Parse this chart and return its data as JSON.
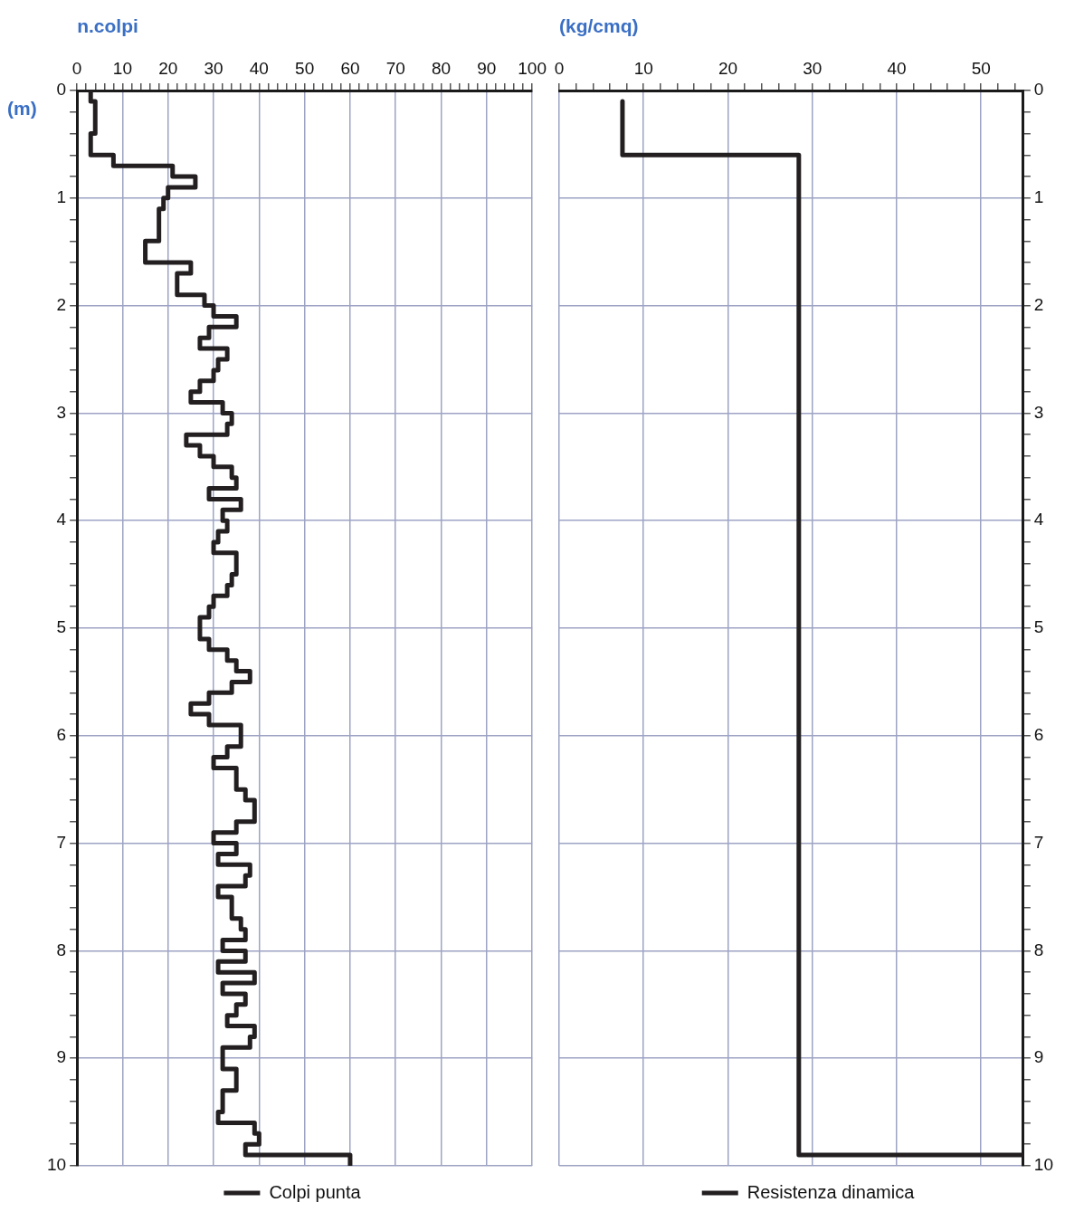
{
  "chart_data": [
    {
      "type": "step",
      "orientation": "horizontal",
      "xlabel": "n.colpi",
      "ylabel": "(m)",
      "x": [
        0,
        0.1,
        0.4,
        0.6,
        0.7,
        0.8,
        0.9,
        1.0,
        1.1,
        1.4,
        1.6,
        1.7,
        1.9,
        2.0,
        2.1,
        2.2,
        2.3,
        2.4,
        2.5,
        2.6,
        2.7,
        2.8,
        2.9,
        3.0,
        3.1,
        3.2,
        3.3,
        3.4,
        3.5,
        3.6,
        3.7,
        3.8,
        3.9,
        4.0,
        4.1,
        4.2,
        4.3,
        4.5,
        4.6,
        4.7,
        4.8,
        4.9,
        5.1,
        5.2,
        5.3,
        5.4,
        5.5,
        5.6,
        5.7,
        5.8,
        5.9,
        6.1,
        6.2,
        6.3,
        6.5,
        6.6,
        6.8,
        6.9,
        7.0,
        7.1,
        7.2,
        7.3,
        7.4,
        7.5,
        7.7,
        7.8,
        7.9,
        8.0,
        8.1,
        8.2,
        8.3,
        8.4,
        8.5,
        8.6,
        8.7,
        8.8,
        8.9,
        9.1,
        9.3,
        9.5,
        9.6,
        9.7,
        9.8,
        9.9,
        10
      ],
      "series": [
        {
          "name": "Colpi punta",
          "color": "#231f20",
          "values": [
            3,
            4,
            3,
            8,
            21,
            26,
            20,
            19,
            18,
            15,
            25,
            22,
            28,
            30,
            35,
            29,
            27,
            33,
            31,
            30,
            27,
            25,
            32,
            34,
            33,
            24,
            27,
            30,
            34,
            35,
            29,
            36,
            32,
            33,
            31,
            30,
            35,
            34,
            33,
            30,
            29,
            27,
            29,
            33,
            35,
            38,
            34,
            29,
            25,
            29,
            36,
            33,
            30,
            35,
            37,
            39,
            35,
            30,
            35,
            31,
            38,
            37,
            31,
            34,
            36,
            37,
            32,
            37,
            31,
            39,
            32,
            37,
            35,
            33,
            39,
            38,
            32,
            35,
            32,
            31,
            39,
            40,
            37,
            60,
            60
          ]
        }
      ],
      "xlim": [
        0,
        100
      ],
      "xticks": [
        0,
        {
          "value": 2,
          "label": null
        },
        {
          "value": 4,
          "label": null
        },
        {
          "value": 6,
          "label": null
        },
        {
          "value": 8,
          "label": null
        },
        10,
        {
          "value": 12,
          "label": null
        },
        {
          "value": 14,
          "label": null
        },
        {
          "value": 16,
          "label": null
        },
        {
          "value": 18,
          "label": null
        },
        20,
        {
          "value": 22,
          "label": null
        },
        {
          "value": 24,
          "label": null
        },
        {
          "value": 26,
          "label": null
        },
        {
          "value": 28,
          "label": null
        },
        30,
        {
          "value": 32,
          "label": null
        },
        {
          "value": 34,
          "label": null
        },
        {
          "value": 36,
          "label": null
        },
        {
          "value": 38,
          "label": null
        },
        40,
        {
          "value": 42,
          "label": null
        },
        {
          "value": 44,
          "label": null
        },
        {
          "value": 46,
          "label": null
        },
        {
          "value": 48,
          "label": null
        },
        50,
        {
          "value": 52,
          "label": null
        },
        {
          "value": 54,
          "label": null
        },
        {
          "value": 56,
          "label": null
        },
        {
          "value": 58,
          "label": null
        },
        60,
        {
          "value": 62,
          "label": null
        },
        {
          "value": 64,
          "label": null
        },
        {
          "value": 66,
          "label": null
        },
        {
          "value": 68,
          "label": null
        },
        70,
        {
          "value": 72,
          "label": null
        },
        {
          "value": 74,
          "label": null
        },
        {
          "value": 76,
          "label": null
        },
        {
          "value": 78,
          "label": null
        },
        80,
        {
          "value": 82,
          "label": null
        },
        {
          "value": 84,
          "label": null
        },
        {
          "value": 86,
          "label": null
        },
        {
          "value": 88,
          "label": null
        },
        90,
        {
          "value": 92,
          "label": null
        },
        {
          "value": 94,
          "label": null
        },
        {
          "value": 96,
          "label": null
        },
        {
          "value": 98,
          "label": null
        },
        100
      ],
      "ylim": [
        10,
        0
      ],
      "yticks": [
        0,
        {
          "value": 0.2,
          "label": null
        },
        {
          "value": 0.4,
          "label": null
        },
        {
          "value": 0.6,
          "label": null
        },
        {
          "value": 0.8,
          "label": null
        },
        1,
        {
          "value": 1.2,
          "label": null
        },
        {
          "value": 1.4,
          "label": null
        },
        {
          "value": 1.6,
          "label": null
        },
        {
          "value": 1.8,
          "label": null
        },
        2,
        {
          "value": 2.2,
          "label": null
        },
        {
          "value": 2.4,
          "label": null
        },
        {
          "value": 2.6,
          "label": null
        },
        {
          "value": 2.8,
          "label": null
        },
        3,
        {
          "value": 3.2,
          "label": null
        },
        {
          "value": 3.4,
          "label": null
        },
        {
          "value": 3.6,
          "label": null
        },
        {
          "value": 3.8,
          "label": null
        },
        4,
        {
          "value": 4.2,
          "label": null
        },
        {
          "value": 4.4,
          "label": null
        },
        {
          "value": 4.6,
          "label": null
        },
        {
          "value": 4.8,
          "label": null
        },
        5,
        {
          "value": 5.2,
          "label": null
        },
        {
          "value": 5.4,
          "label": null
        },
        {
          "value": 5.6,
          "label": null
        },
        {
          "value": 5.8,
          "label": null
        },
        6,
        {
          "value": 6.2,
          "label": null
        },
        {
          "value": 6.4,
          "label": null
        },
        {
          "value": 6.6,
          "label": null
        },
        {
          "value": 6.8,
          "label": null
        },
        7,
        {
          "value": 7.2,
          "label": null
        },
        {
          "value": 7.4,
          "label": null
        },
        {
          "value": 7.6,
          "label": null
        },
        {
          "value": 7.8,
          "label": null
        },
        8,
        {
          "value": 8.2,
          "label": null
        },
        {
          "value": 8.4,
          "label": null
        },
        {
          "value": 8.6,
          "label": null
        },
        {
          "value": 8.8,
          "label": null
        },
        9,
        {
          "value": 9.2,
          "label": null
        },
        {
          "value": 9.4,
          "label": null
        },
        {
          "value": 9.6,
          "label": null
        },
        {
          "value": 9.8,
          "label": null
        },
        10
      ],
      "grid": true,
      "legend": "bottom",
      "line_style": "solid",
      "marker": "none"
    },
    {
      "type": "step",
      "orientation": "horizontal",
      "xlabel": "(kg/cmq)",
      "x": [
        0.1,
        0.6,
        9.9
      ],
      "series": [
        {
          "name": "Resistenza dinamica",
          "color": "#231f20",
          "values": [
            7.5,
            28.4,
            55
          ]
        }
      ],
      "xlim": [
        0,
        55
      ],
      "xticks": [
        0,
        {
          "value": 2,
          "label": null
        },
        {
          "value": 4,
          "label": null
        },
        {
          "value": 6,
          "label": null
        },
        {
          "value": 8,
          "label": null
        },
        10,
        {
          "value": 12,
          "label": null
        },
        {
          "value": 14,
          "label": null
        },
        {
          "value": 16,
          "label": null
        },
        {
          "value": 18,
          "label": null
        },
        20,
        {
          "value": 22,
          "label": null
        },
        {
          "value": 24,
          "label": null
        },
        {
          "value": 26,
          "label": null
        },
        {
          "value": 28,
          "label": null
        },
        30,
        {
          "value": 32,
          "label": null
        },
        {
          "value": 34,
          "label": null
        },
        {
          "value": 36,
          "label": null
        },
        {
          "value": 38,
          "label": null
        },
        40,
        {
          "value": 42,
          "label": null
        },
        {
          "value": 44,
          "label": null
        },
        {
          "value": 46,
          "label": null
        },
        {
          "value": 48,
          "label": null
        },
        50,
        {
          "value": 52,
          "label": null
        },
        {
          "value": 54,
          "label": null
        }
      ],
      "ylim": [
        10,
        0
      ],
      "yticks": [
        0,
        {
          "value": 0.2,
          "label": null
        },
        {
          "value": 0.4,
          "label": null
        },
        {
          "value": 0.6,
          "label": null
        },
        {
          "value": 0.8,
          "label": null
        },
        1,
        {
          "value": 1.2,
          "label": null
        },
        {
          "value": 1.4,
          "label": null
        },
        {
          "value": 1.6,
          "label": null
        },
        {
          "value": 1.8,
          "label": null
        },
        2,
        {
          "value": 2.2,
          "label": null
        },
        {
          "value": 2.4,
          "label": null
        },
        {
          "value": 2.6,
          "label": null
        },
        {
          "value": 2.8,
          "label": null
        },
        3,
        {
          "value": 3.2,
          "label": null
        },
        {
          "value": 3.4,
          "label": null
        },
        {
          "value": 3.6,
          "label": null
        },
        {
          "value": 3.8,
          "label": null
        },
        4,
        {
          "value": 4.2,
          "label": null
        },
        {
          "value": 4.4,
          "label": null
        },
        {
          "value": 4.6,
          "label": null
        },
        {
          "value": 4.8,
          "label": null
        },
        5,
        {
          "value": 5.2,
          "label": null
        },
        {
          "value": 5.4,
          "label": null
        },
        {
          "value": 5.6,
          "label": null
        },
        {
          "value": 5.8,
          "label": null
        },
        6,
        {
          "value": 6.2,
          "label": null
        },
        {
          "value": 6.4,
          "label": null
        },
        {
          "value": 6.6,
          "label": null
        },
        {
          "value": 6.8,
          "label": null
        },
        7,
        {
          "value": 7.2,
          "label": null
        },
        {
          "value": 7.4,
          "label": null
        },
        {
          "value": 7.6,
          "label": null
        },
        {
          "value": 7.8,
          "label": null
        },
        8,
        {
          "value": 8.2,
          "label": null
        },
        {
          "value": 8.4,
          "label": null
        },
        {
          "value": 8.6,
          "label": null
        },
        {
          "value": 8.8,
          "label": null
        },
        9,
        {
          "value": 9.2,
          "label": null
        },
        {
          "value": 9.4,
          "label": null
        },
        {
          "value": 9.6,
          "label": null
        },
        {
          "value": 9.8,
          "label": null
        },
        10
      ],
      "grid": true,
      "legend": "bottom",
      "line_style": "solid",
      "marker": "none"
    }
  ]
}
